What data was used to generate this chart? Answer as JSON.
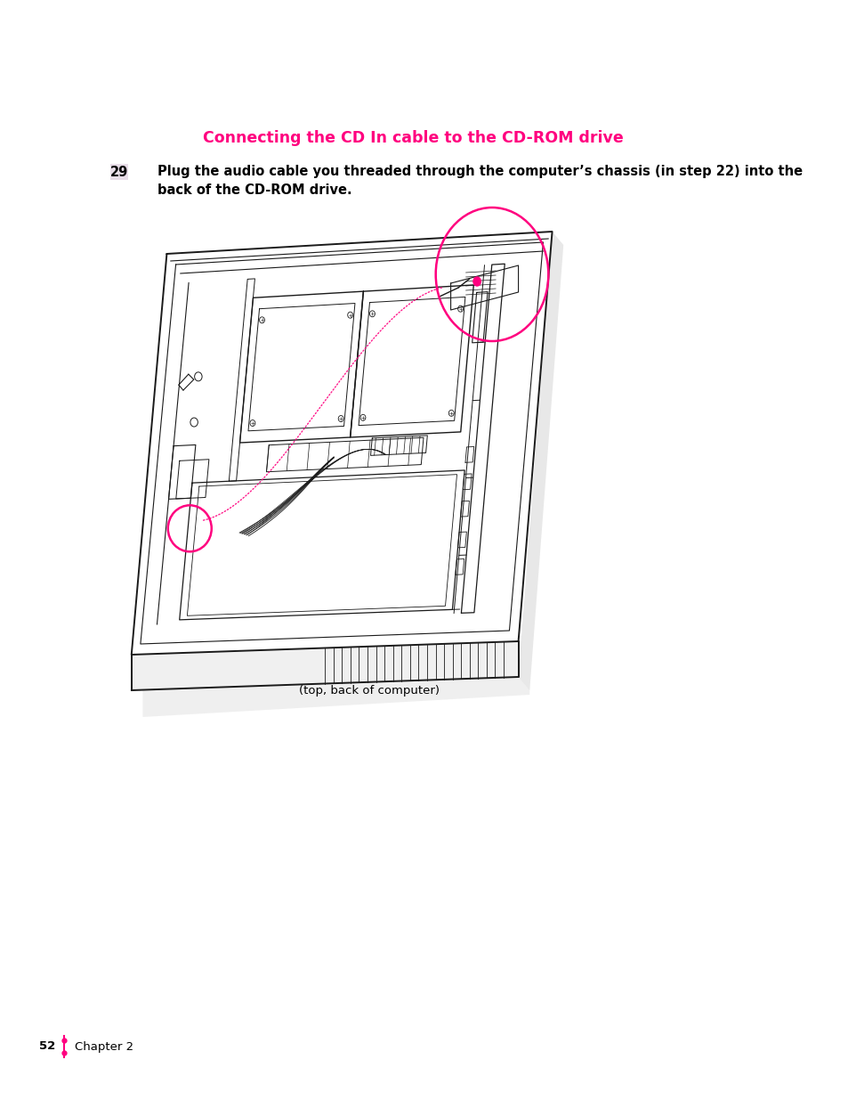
{
  "bg_color": "#ffffff",
  "title": "Connecting the CD In cable to the CD-ROM drive",
  "title_color": "#FF007F",
  "title_fontsize": 12.5,
  "step_number": "29",
  "step_number_bg": "#e8e0e8",
  "step_text_line1": "Plug the audio cable you threaded through the computer’s chassis (in step 22) into the",
  "step_text_line2": "back of the CD-ROM drive.",
  "step_text_fontsize": 10.5,
  "caption": "(top, back of computer)",
  "caption_fontsize": 9.5,
  "footer_number": "52",
  "footer_chapter": "Chapter 2",
  "footer_fontsize": 9.5,
  "footer_dot_color": "#FF007F",
  "line_color": "#1a1a1a",
  "magenta": "#FF007F",
  "line_width": 0.9
}
